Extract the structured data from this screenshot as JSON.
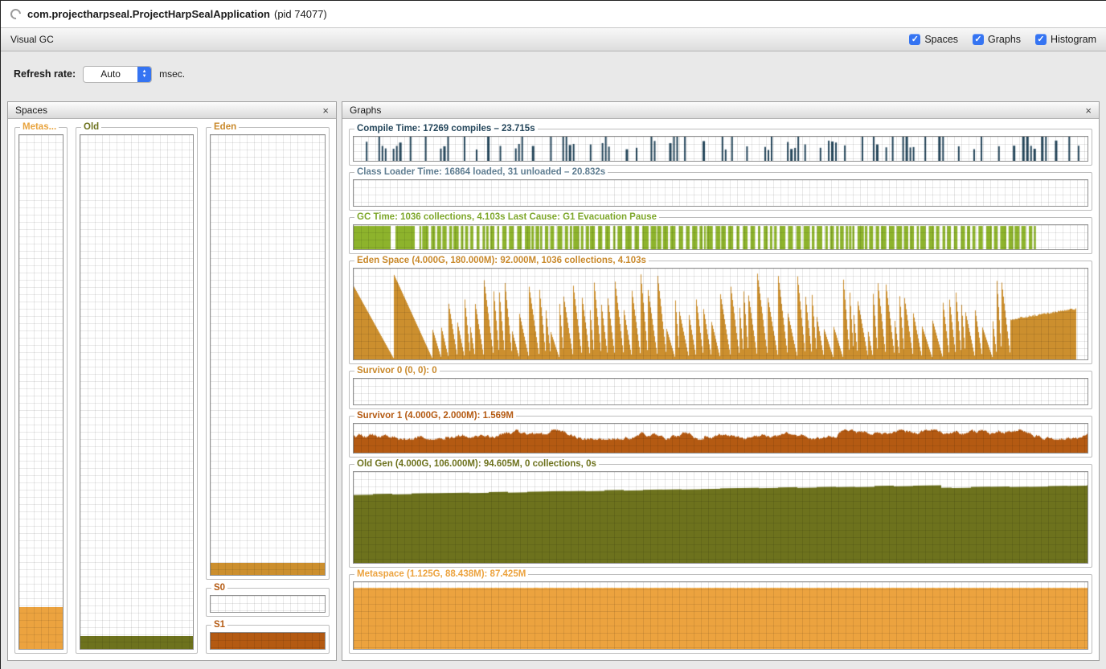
{
  "header": {
    "app_name": "com.projectharpseal.ProjectHarpSealApplication",
    "pid": "(pid 74077)"
  },
  "toolbar": {
    "title": "Visual GC",
    "accent_color": "#3574f2",
    "check_glyph": "✓",
    "checkboxes": [
      {
        "label": "Spaces",
        "checked": true
      },
      {
        "label": "Graphs",
        "checked": true
      },
      {
        "label": "Histogram",
        "checked": true
      }
    ]
  },
  "controls": {
    "refresh_label": "Refresh rate:",
    "refresh_value": "Auto",
    "unit": "msec.",
    "stepper_up": "▲",
    "stepper_down": "▼"
  },
  "spaces": {
    "title": "Spaces",
    "close": "×",
    "groups": [
      {
        "id": "metaspace",
        "label": "Metas...",
        "color": "#e8a33d",
        "fill": "8.1%",
        "fill_color": "#eca33f"
      },
      {
        "id": "old",
        "label": "Old",
        "color": "#6d721d",
        "fill": "2.5%",
        "fill_color": "#6d721d"
      },
      {
        "id": "eden",
        "label": "Eden",
        "color": "#c9892b",
        "fill": "2.7%",
        "fill_color": "#cc8f2e"
      },
      {
        "id": "s0",
        "label": "S0",
        "color": "#b45a12",
        "fill": "0%",
        "fill_color": "#b45a12"
      },
      {
        "id": "s1",
        "label": "S1",
        "color": "#b45a12",
        "fill": "100%",
        "fill_color": "#b45a12"
      }
    ]
  },
  "graphs": {
    "title": "Graphs",
    "close": "×",
    "items": [
      {
        "id": "compile-time",
        "title": "Compile Time: 17269 compiles – 23.715s",
        "title_color": "#24465b",
        "fill_color": "#24465b",
        "pattern": "ticks",
        "seed": 11
      },
      {
        "id": "class-loader-time",
        "title": "Class Loader Time: 16864 loaded, 31 unloaded – 20.832s",
        "title_color": "#5f7d91",
        "fill_color": "#5f7d91",
        "pattern": "none",
        "seed": 2
      },
      {
        "id": "gc-time",
        "title": "GC Time: 1036 collections, 4.103s  Last Cause: G1 Evacuation Pause",
        "title_color": "#7ea72b",
        "fill_color": "#8db32c",
        "pattern": "solidbars",
        "seed": 7
      },
      {
        "id": "eden-space",
        "title": "Eden Space (4.000G, 180.000M): 92.000M, 1036 collections, 4.103s",
        "title_color": "#c9892b",
        "fill_color": "#cc8f2e",
        "pattern": "sawtooth",
        "seed": 3
      },
      {
        "id": "survivor-0",
        "title": "Survivor 0 (0, 0): 0",
        "title_color": "#c9892b",
        "fill_color": "#c9892b",
        "pattern": "none",
        "seed": 4
      },
      {
        "id": "survivor-1",
        "title": "Survivor 1 (4.000G, 2.000M): 1.569M",
        "title_color": "#b45a12",
        "fill_color": "#b45a12",
        "pattern": "noiseband",
        "seed": 5
      },
      {
        "id": "old-gen",
        "title": "Old Gen (4.000G, 106.000M): 94.605M, 0 collections, 0s",
        "title_color": "#6d721d",
        "fill_color": "#6d721d",
        "pattern": "risingarea",
        "seed": 9
      },
      {
        "id": "metaspace-graph",
        "title": "Metaspace (1.125G, 88.438M): 87.425M",
        "title_color": "#eca33f",
        "fill_color": "#eca33f",
        "pattern": "flatarea",
        "seed": 13
      }
    ]
  }
}
